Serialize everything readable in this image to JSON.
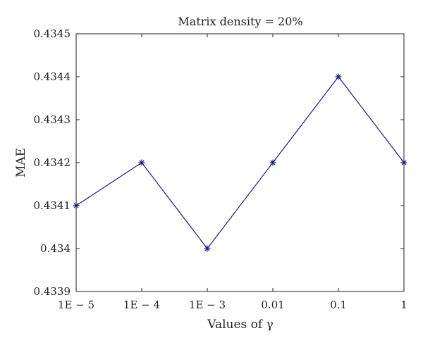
{
  "chart_data": {
    "type": "line",
    "title": "Matrix density = 20%",
    "xlabel": "Values of γ",
    "ylabel": "MAE",
    "categories": [
      "1E − 5",
      "1E − 4",
      "1E − 3",
      "0.01",
      "0.1",
      "1"
    ],
    "series": [
      {
        "values": [
          0.4341,
          0.4342,
          0.434,
          0.4342,
          0.4344,
          0.4342
        ]
      }
    ],
    "ylim": [
      0.4339,
      0.4345
    ],
    "yticks": [
      0.4339,
      0.434,
      0.4341,
      0.4342,
      0.4343,
      0.4344,
      0.4345
    ],
    "ytick_labels": [
      "0.4339",
      "0.434",
      "0.4341",
      "0.4342",
      "0.4343",
      "0.4344",
      "0.4345"
    ],
    "grid": false,
    "marker": "asterisk",
    "line_color": "#1a1a8c"
  }
}
